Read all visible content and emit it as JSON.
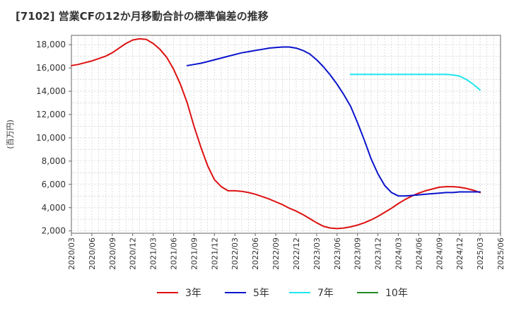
{
  "chart_data": {
    "type": "line",
    "title": "[7102]  営業CFの12か月移動合計の標準偏差の推移",
    "ylabel": "(百万円)",
    "xlabel": "",
    "ylim": [
      1800,
      18800
    ],
    "y_ticks": [
      2000,
      4000,
      6000,
      8000,
      10000,
      12000,
      14000,
      16000,
      18000
    ],
    "y_tick_labels": [
      "2,000",
      "4,000",
      "6,000",
      "8,000",
      "10,000",
      "12,000",
      "14,000",
      "16,000",
      "18,000"
    ],
    "x_ticks": [
      "2020/03",
      "2020/06",
      "2020/09",
      "2020/12",
      "2021/03",
      "2021/06",
      "2021/09",
      "2021/12",
      "2022/03",
      "2022/06",
      "2022/09",
      "2022/12",
      "2023/03",
      "2023/06",
      "2023/09",
      "2023/12",
      "2024/03",
      "2024/06",
      "2024/09",
      "2024/12",
      "2025/03",
      "2025/06"
    ],
    "grid": true,
    "legend_position": "bottom",
    "series": [
      {
        "name": "3年",
        "color": "#dd1111",
        "x": [
          "2020/03",
          "2020/04",
          "2020/05",
          "2020/06",
          "2020/07",
          "2020/08",
          "2020/09",
          "2020/10",
          "2020/11",
          "2020/12",
          "2021/01",
          "2021/02",
          "2021/03",
          "2021/04",
          "2021/05",
          "2021/06",
          "2021/07",
          "2021/08",
          "2021/09",
          "2021/10",
          "2021/11",
          "2021/12",
          "2022/01",
          "2022/02",
          "2022/03",
          "2022/04",
          "2022/05",
          "2022/06",
          "2022/07",
          "2022/08",
          "2022/09",
          "2022/10",
          "2022/11",
          "2022/12",
          "2023/01",
          "2023/02",
          "2023/03",
          "2023/04",
          "2023/05",
          "2023/06",
          "2023/07",
          "2023/08",
          "2023/09",
          "2023/10",
          "2023/11",
          "2023/12",
          "2024/01",
          "2024/02",
          "2024/03",
          "2024/04",
          "2024/05",
          "2024/06",
          "2024/07",
          "2024/08",
          "2024/09",
          "2024/10",
          "2024/11",
          "2024/12",
          "2025/01",
          "2025/02",
          "2025/03"
        ],
        "values": [
          16200,
          16300,
          16450,
          16600,
          16800,
          17000,
          17300,
          17700,
          18100,
          18400,
          18500,
          18450,
          18100,
          17600,
          16900,
          15900,
          14600,
          13000,
          11000,
          9200,
          7600,
          6400,
          5800,
          5450,
          5450,
          5400,
          5300,
          5150,
          4950,
          4750,
          4500,
          4250,
          3950,
          3700,
          3400,
          3050,
          2700,
          2400,
          2250,
          2200,
          2250,
          2350,
          2500,
          2700,
          2950,
          3250,
          3600,
          3950,
          4350,
          4700,
          5000,
          5250,
          5450,
          5600,
          5750,
          5800,
          5800,
          5750,
          5650,
          5500,
          5300
        ]
      },
      {
        "name": "5年",
        "color": "#0a14cc",
        "x": [
          "2021/08",
          "2021/09",
          "2021/10",
          "2021/11",
          "2021/12",
          "2022/01",
          "2022/02",
          "2022/03",
          "2022/04",
          "2022/05",
          "2022/06",
          "2022/07",
          "2022/08",
          "2022/09",
          "2022/10",
          "2022/11",
          "2022/12",
          "2023/01",
          "2023/02",
          "2023/03",
          "2023/04",
          "2023/05",
          "2023/06",
          "2023/07",
          "2023/08",
          "2023/09",
          "2023/10",
          "2023/11",
          "2023/12",
          "2024/01",
          "2024/02",
          "2024/03",
          "2024/04",
          "2024/05",
          "2024/06",
          "2024/07",
          "2024/08",
          "2024/09",
          "2024/10",
          "2024/11",
          "2024/12",
          "2025/01",
          "2025/02",
          "2025/03"
        ],
        "values": [
          16200,
          16300,
          16400,
          16550,
          16700,
          16850,
          17000,
          17150,
          17300,
          17400,
          17500,
          17600,
          17700,
          17750,
          17800,
          17800,
          17700,
          17500,
          17200,
          16700,
          16100,
          15400,
          14600,
          13700,
          12700,
          11300,
          9800,
          8200,
          6900,
          5900,
          5300,
          5000,
          5000,
          5050,
          5100,
          5150,
          5200,
          5250,
          5300,
          5300,
          5350,
          5350,
          5350,
          5350
        ]
      },
      {
        "name": "7年",
        "color": "#1ee6ee",
        "x": [
          "2023/08",
          "2023/09",
          "2023/10",
          "2023/11",
          "2023/12",
          "2024/01",
          "2024/02",
          "2024/03",
          "2024/04",
          "2024/05",
          "2024/06",
          "2024/07",
          "2024/08",
          "2024/09",
          "2024/10",
          "2024/11",
          "2024/12",
          "2025/01",
          "2025/02",
          "2025/03"
        ],
        "values": [
          15450,
          15450,
          15450,
          15450,
          15450,
          15450,
          15450,
          15450,
          15450,
          15450,
          15450,
          15450,
          15450,
          15450,
          15450,
          15400,
          15300,
          15000,
          14600,
          14100
        ]
      },
      {
        "name": "10年",
        "color": "#228b22",
        "x": [],
        "values": []
      }
    ]
  }
}
